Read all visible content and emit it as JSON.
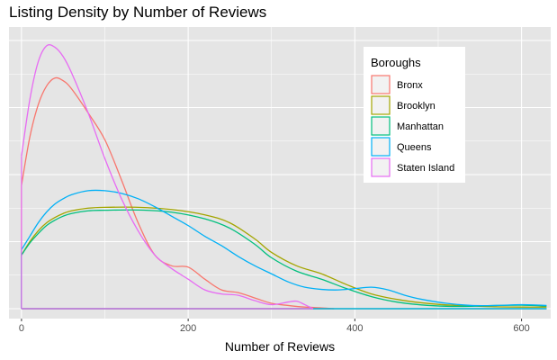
{
  "chart_data": {
    "type": "area",
    "subtype": "density",
    "title": "Listing Density by Number of Reviews",
    "xlabel": "Number of Reviews",
    "ylabel": "",
    "xlim": [
      -15,
      635
    ],
    "ylim": [
      0,
      1
    ],
    "x_ticks": [
      0,
      200,
      400,
      600
    ],
    "y_ticks": [],
    "grid": true,
    "legend": {
      "title": "Boroughs",
      "placement": "top-right"
    },
    "colors": {
      "panel": "#e5e5e5",
      "grid_major": "#ffffff",
      "Bronx": "#F8766D",
      "Brooklyn": "#A3A500",
      "Manhattan": "#00BF7D",
      "Queens": "#00B0F6",
      "Staten Island": "#E76BF3"
    },
    "series": [
      {
        "name": "Bronx",
        "x_max": 375,
        "x": [
          0,
          10,
          20,
          30,
          40,
          50,
          60,
          80,
          100,
          120,
          140,
          160,
          180,
          200,
          220,
          240,
          260,
          280,
          300,
          320,
          340,
          360,
          375
        ],
        "y": [
          0.46,
          0.64,
          0.76,
          0.83,
          0.86,
          0.85,
          0.82,
          0.73,
          0.63,
          0.48,
          0.32,
          0.2,
          0.16,
          0.155,
          0.11,
          0.07,
          0.06,
          0.04,
          0.02,
          0.012,
          0.006,
          0.003,
          0.0
        ]
      },
      {
        "name": "Brooklyn",
        "x_max": 630,
        "x": [
          0,
          10,
          20,
          30,
          40,
          50,
          60,
          80,
          100,
          140,
          180,
          220,
          250,
          280,
          300,
          330,
          360,
          390,
          420,
          450,
          480,
          510,
          540,
          570,
          600,
          630
        ],
        "y": [
          0.2,
          0.25,
          0.29,
          0.32,
          0.34,
          0.355,
          0.365,
          0.375,
          0.378,
          0.378,
          0.37,
          0.35,
          0.32,
          0.26,
          0.21,
          0.16,
          0.13,
          0.09,
          0.055,
          0.035,
          0.022,
          0.014,
          0.01,
          0.007,
          0.006,
          0.006
        ]
      },
      {
        "name": "Manhattan",
        "x_max": 630,
        "x": [
          0,
          10,
          20,
          30,
          40,
          50,
          60,
          80,
          100,
          140,
          180,
          220,
          250,
          280,
          300,
          330,
          360,
          390,
          420,
          450,
          480,
          510,
          540,
          570,
          600,
          630
        ],
        "y": [
          0.2,
          0.245,
          0.28,
          0.31,
          0.33,
          0.345,
          0.355,
          0.365,
          0.367,
          0.368,
          0.36,
          0.335,
          0.3,
          0.24,
          0.19,
          0.14,
          0.11,
          0.075,
          0.045,
          0.025,
          0.014,
          0.009,
          0.009,
          0.012,
          0.013,
          0.01
        ]
      },
      {
        "name": "Queens",
        "x_max": 630,
        "x": [
          0,
          10,
          20,
          30,
          40,
          50,
          60,
          80,
          100,
          120,
          140,
          160,
          180,
          200,
          220,
          240,
          260,
          280,
          300,
          320,
          340,
          360,
          380,
          400,
          420,
          440,
          460,
          480,
          510,
          540,
          570,
          600,
          630
        ],
        "y": [
          0.22,
          0.27,
          0.32,
          0.36,
          0.39,
          0.41,
          0.425,
          0.44,
          0.44,
          0.43,
          0.41,
          0.38,
          0.345,
          0.31,
          0.27,
          0.235,
          0.195,
          0.16,
          0.13,
          0.1,
          0.08,
          0.072,
          0.07,
          0.075,
          0.08,
          0.07,
          0.05,
          0.035,
          0.02,
          0.012,
          0.012,
          0.015,
          0.012
        ]
      },
      {
        "name": "Staten Island",
        "x_max": 350,
        "x": [
          0,
          10,
          20,
          30,
          40,
          50,
          60,
          80,
          100,
          120,
          140,
          160,
          180,
          200,
          220,
          240,
          260,
          280,
          300,
          320,
          330,
          340,
          350
        ],
        "y": [
          0.57,
          0.78,
          0.92,
          0.98,
          0.975,
          0.94,
          0.88,
          0.73,
          0.56,
          0.41,
          0.29,
          0.2,
          0.15,
          0.11,
          0.07,
          0.055,
          0.05,
          0.03,
          0.015,
          0.025,
          0.028,
          0.015,
          0.0
        ]
      }
    ]
  }
}
